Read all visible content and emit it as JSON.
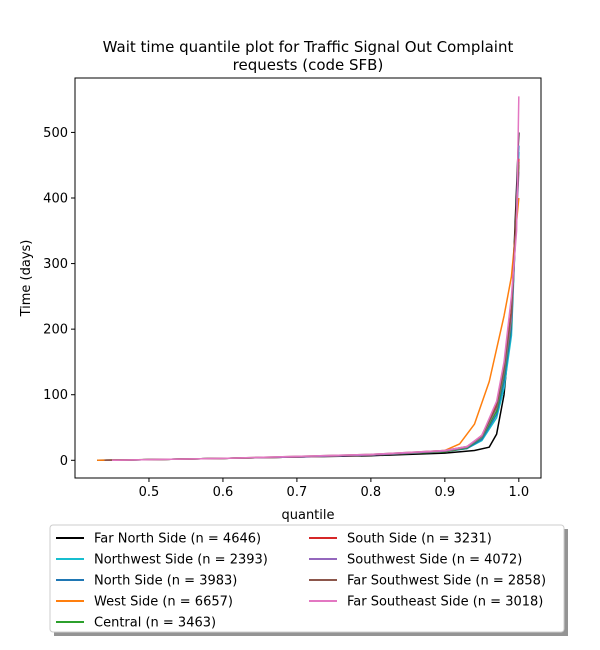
{
  "chart_data": {
    "type": "line",
    "title_line1": "Wait time quantile plot for Traffic Signal Out Complaint",
    "title_line2": "requests (code SFB)",
    "xlabel": "quantile",
    "ylabel": "Time (days)",
    "xlim": [
      0.4,
      1.03
    ],
    "ylim": [
      -27,
      583
    ],
    "xticks": [
      0.5,
      0.6,
      0.7,
      0.8,
      0.9,
      1.0
    ],
    "xtick_labels": [
      "0.5",
      "0.6",
      "0.7",
      "0.8",
      "0.9",
      "1.0"
    ],
    "yticks": [
      0,
      100,
      200,
      300,
      400,
      500
    ],
    "ytick_labels": [
      "0",
      "100",
      "200",
      "300",
      "400",
      "500"
    ],
    "grid": false,
    "legend_position": "below",
    "series": [
      {
        "name": "Far North Side (n = 4646)",
        "color": "#000000",
        "points": [
          [
            0.43,
            0
          ],
          [
            0.5,
            1
          ],
          [
            0.6,
            3
          ],
          [
            0.7,
            5
          ],
          [
            0.8,
            7
          ],
          [
            0.9,
            11
          ],
          [
            0.94,
            15
          ],
          [
            0.96,
            20
          ],
          [
            0.97,
            40
          ],
          [
            0.98,
            100
          ],
          [
            0.99,
            220
          ],
          [
            1.0,
            500
          ]
        ]
      },
      {
        "name": "Northwest Side (n = 2393)",
        "color": "#17becf",
        "points": [
          [
            0.44,
            0
          ],
          [
            0.5,
            1
          ],
          [
            0.6,
            3
          ],
          [
            0.7,
            5
          ],
          [
            0.8,
            8
          ],
          [
            0.9,
            14
          ],
          [
            0.93,
            18
          ],
          [
            0.95,
            30
          ],
          [
            0.97,
            65
          ],
          [
            0.98,
            110
          ],
          [
            0.99,
            190
          ],
          [
            1.0,
            470
          ]
        ]
      },
      {
        "name": "North Side (n = 3983)",
        "color": "#1f77b4",
        "points": [
          [
            0.44,
            0
          ],
          [
            0.5,
            1
          ],
          [
            0.6,
            3
          ],
          [
            0.7,
            5
          ],
          [
            0.8,
            8
          ],
          [
            0.9,
            13
          ],
          [
            0.93,
            18
          ],
          [
            0.95,
            32
          ],
          [
            0.97,
            70
          ],
          [
            0.98,
            120
          ],
          [
            0.99,
            200
          ],
          [
            1.0,
            480
          ]
        ]
      },
      {
        "name": "West Side (n = 6657)",
        "color": "#ff7f0e",
        "points": [
          [
            0.43,
            0
          ],
          [
            0.5,
            1
          ],
          [
            0.6,
            3
          ],
          [
            0.7,
            5
          ],
          [
            0.8,
            8
          ],
          [
            0.9,
            15
          ],
          [
            0.92,
            25
          ],
          [
            0.94,
            55
          ],
          [
            0.96,
            120
          ],
          [
            0.98,
            220
          ],
          [
            0.99,
            280
          ],
          [
            1.0,
            400
          ]
        ]
      },
      {
        "name": "Central (n = 3463)",
        "color": "#2ca02c",
        "points": [
          [
            0.45,
            0
          ],
          [
            0.5,
            1
          ],
          [
            0.6,
            3
          ],
          [
            0.7,
            5
          ],
          [
            0.8,
            8
          ],
          [
            0.9,
            13
          ],
          [
            0.93,
            19
          ],
          [
            0.95,
            35
          ],
          [
            0.97,
            75
          ],
          [
            0.98,
            130
          ],
          [
            0.99,
            210
          ],
          [
            1.0,
            450
          ]
        ]
      },
      {
        "name": "South Side (n = 3231)",
        "color": "#d62728",
        "points": [
          [
            0.44,
            0
          ],
          [
            0.5,
            1
          ],
          [
            0.6,
            3
          ],
          [
            0.7,
            5
          ],
          [
            0.8,
            8
          ],
          [
            0.9,
            14
          ],
          [
            0.93,
            20
          ],
          [
            0.95,
            38
          ],
          [
            0.97,
            85
          ],
          [
            0.98,
            140
          ],
          [
            0.99,
            230
          ],
          [
            1.0,
            460
          ]
        ]
      },
      {
        "name": "Southwest Side (n = 4072)",
        "color": "#9467bd",
        "points": [
          [
            0.44,
            0
          ],
          [
            0.5,
            1
          ],
          [
            0.6,
            3
          ],
          [
            0.7,
            5
          ],
          [
            0.8,
            8
          ],
          [
            0.9,
            14
          ],
          [
            0.93,
            20
          ],
          [
            0.95,
            36
          ],
          [
            0.97,
            80
          ],
          [
            0.98,
            135
          ],
          [
            0.99,
            215
          ],
          [
            1.0,
            440
          ]
        ]
      },
      {
        "name": "Far Southwest Side (n = 2858)",
        "color": "#8c564b",
        "points": [
          [
            0.44,
            0
          ],
          [
            0.5,
            1
          ],
          [
            0.6,
            3
          ],
          [
            0.7,
            6
          ],
          [
            0.8,
            9
          ],
          [
            0.9,
            15
          ],
          [
            0.93,
            21
          ],
          [
            0.95,
            37
          ],
          [
            0.97,
            82
          ],
          [
            0.98,
            138
          ],
          [
            0.99,
            225
          ],
          [
            1.0,
            455
          ]
        ]
      },
      {
        "name": "Far Southeast Side (n = 3018)",
        "color": "#e377c2",
        "points": [
          [
            0.45,
            0
          ],
          [
            0.5,
            1
          ],
          [
            0.6,
            3
          ],
          [
            0.7,
            6
          ],
          [
            0.8,
            9
          ],
          [
            0.9,
            15
          ],
          [
            0.93,
            21
          ],
          [
            0.95,
            38
          ],
          [
            0.97,
            90
          ],
          [
            0.98,
            150
          ],
          [
            0.99,
            250
          ],
          [
            0.997,
            350
          ],
          [
            1.0,
            555
          ]
        ]
      }
    ]
  }
}
